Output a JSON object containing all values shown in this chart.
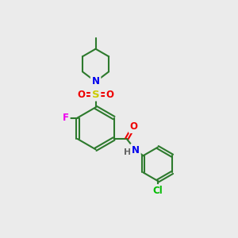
{
  "background_color": "#ebebeb",
  "bond_color": "#2d7a2d",
  "bond_width": 1.5,
  "atom_colors": {
    "N": "#0000ee",
    "O": "#ee0000",
    "S": "#cccc00",
    "F": "#ee00ee",
    "Cl": "#00bb00",
    "H": "#666666",
    "C": "#2d7a2d"
  },
  "font_size": 8.5
}
